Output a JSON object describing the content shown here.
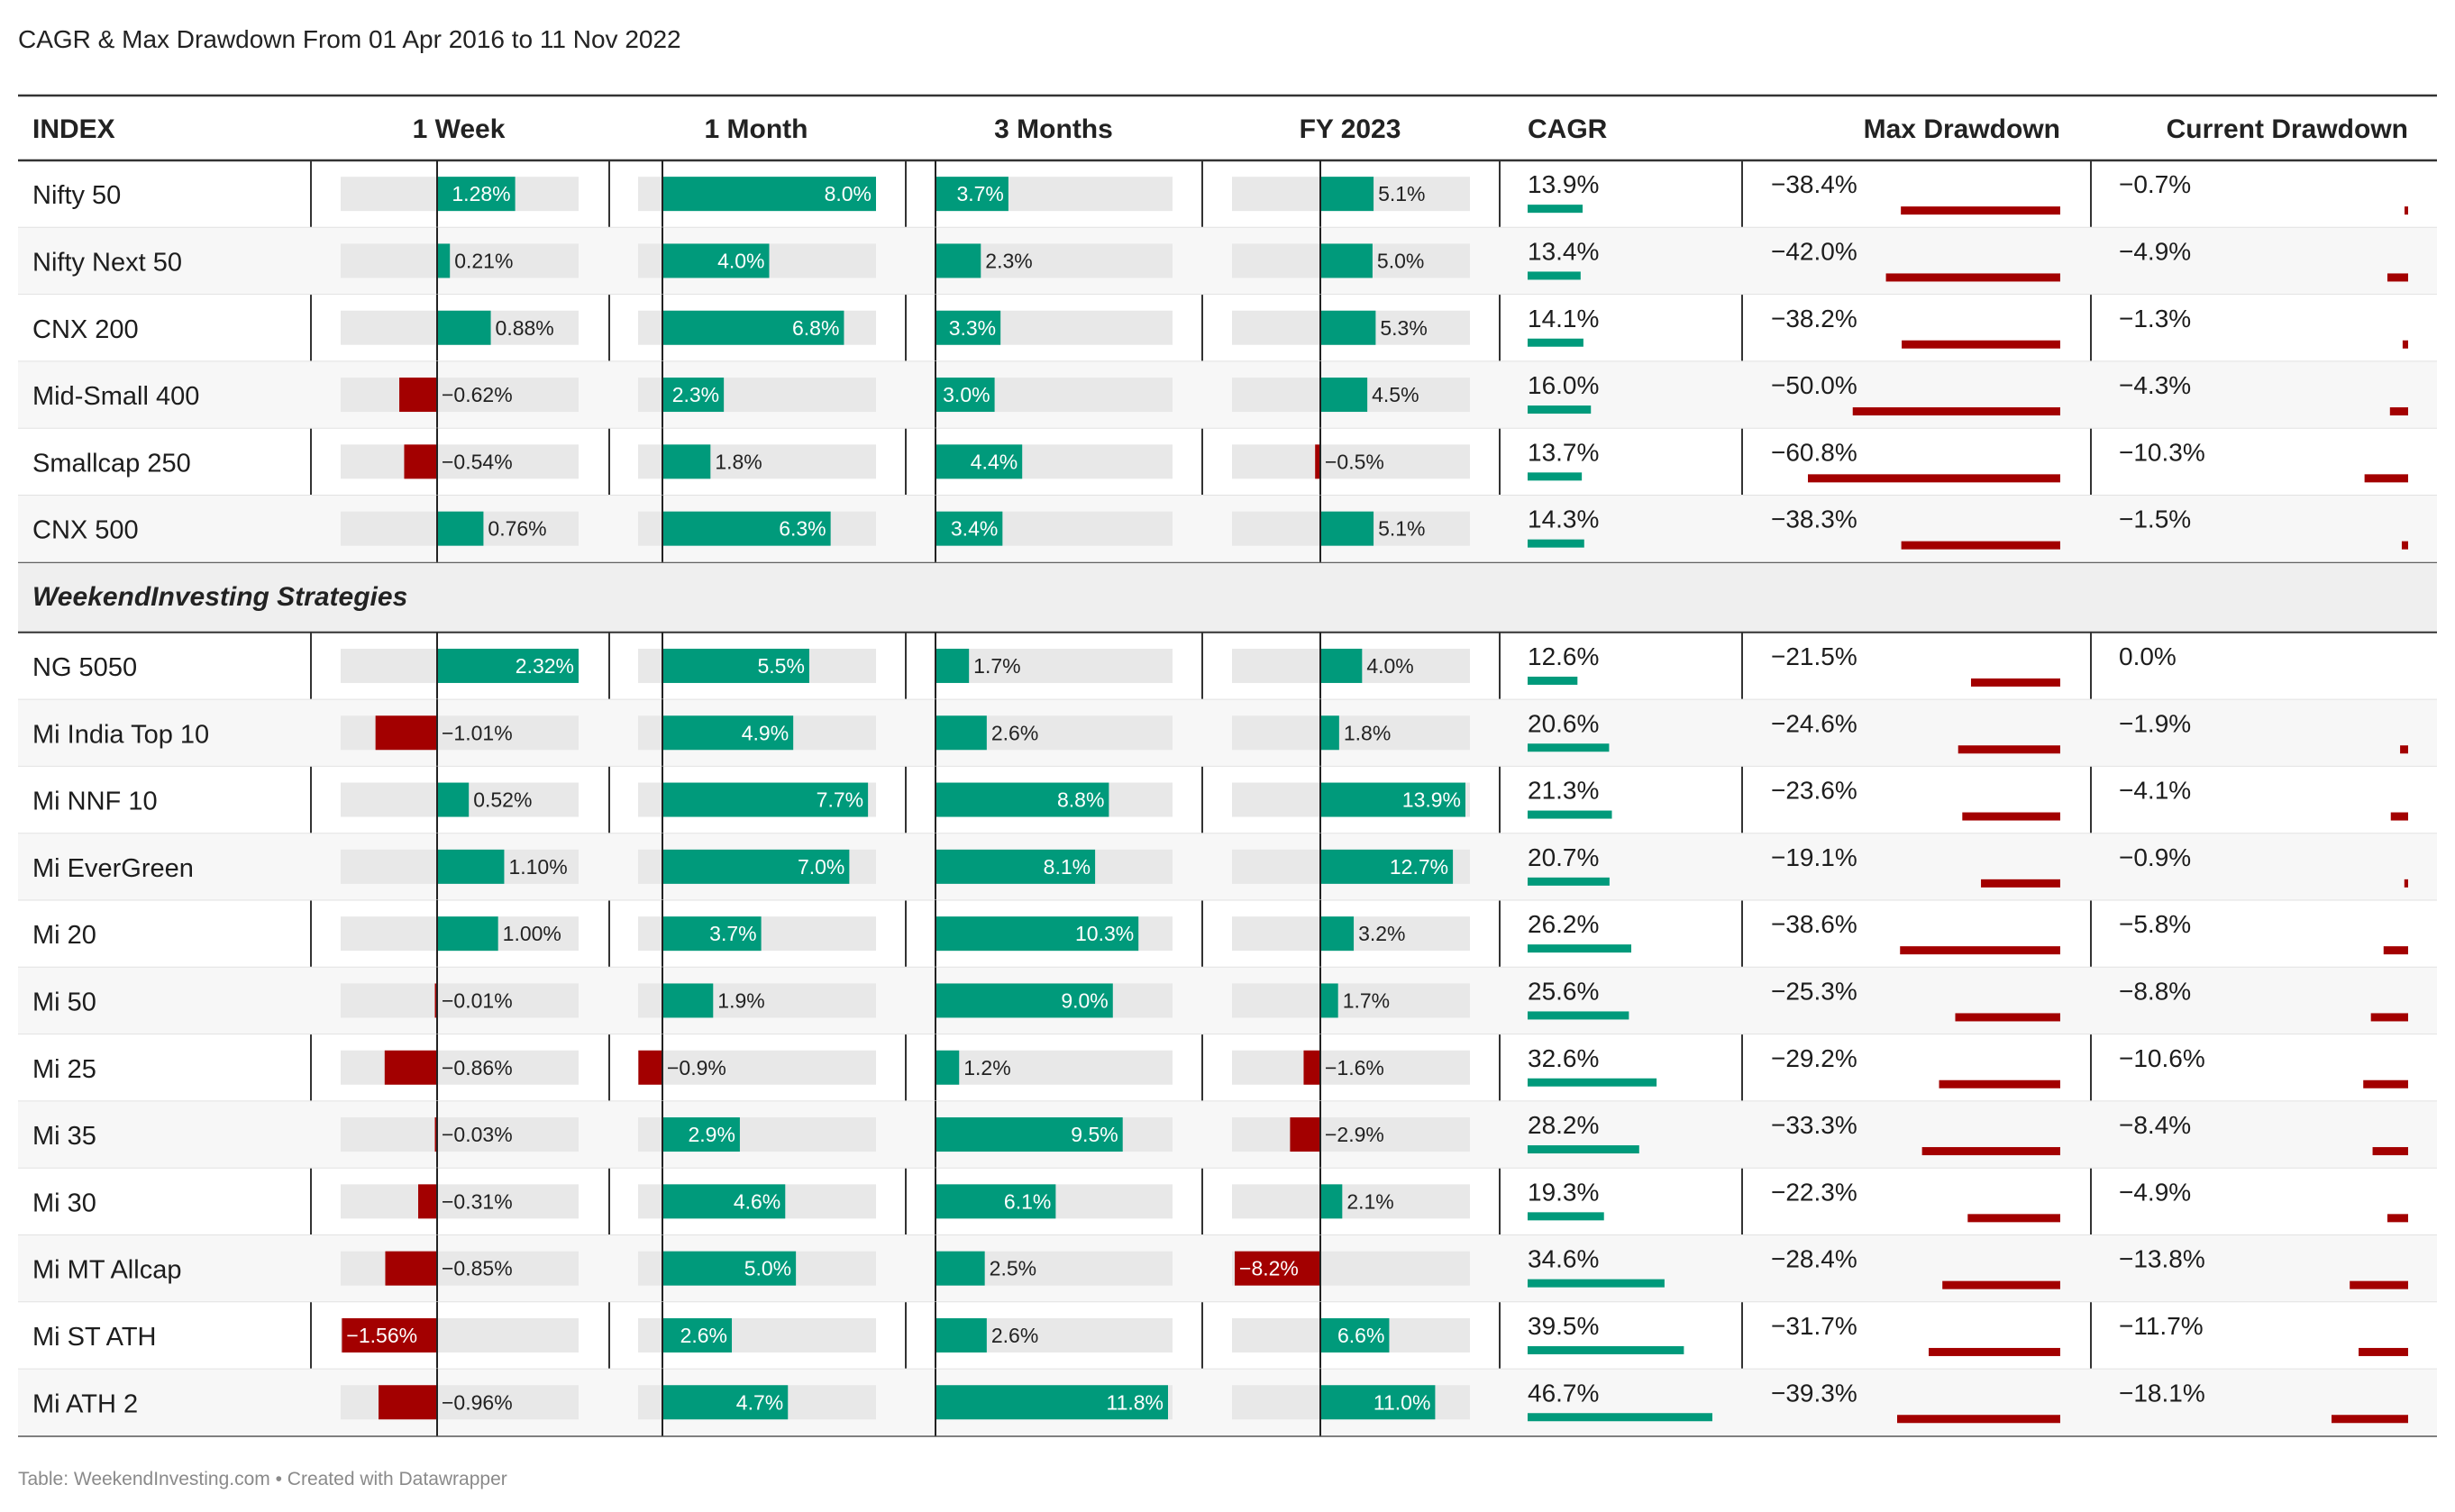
{
  "title": "CAGR & Max Drawdown From 01 Apr 2016 to 11 Nov 2022",
  "footer": "Table: WeekendInvesting.com • Created with Datawrapper",
  "colors": {
    "positive": "#009a7b",
    "negative": "#a30000",
    "track": "#e8e8e8",
    "group_bg": "#efefef",
    "zebra": "#f7f7f7"
  },
  "chart_data": {
    "type": "table",
    "columns": [
      "INDEX",
      "1 Week",
      "1 Month",
      "3 Months",
      "FY 2023",
      "CAGR",
      "Max Drawdown",
      "Current Drawdown"
    ],
    "groups": [
      {
        "label": "",
        "rows": [
          {
            "name": "Nifty 50",
            "week": 1.28,
            "month": 8.0,
            "three_months": 3.7,
            "fy2023": 5.1,
            "cagr": 13.9,
            "max_dd": -38.4,
            "cur_dd": -0.7
          },
          {
            "name": "Nifty Next 50",
            "week": 0.21,
            "month": 4.0,
            "three_months": 2.3,
            "fy2023": 5.0,
            "cagr": 13.4,
            "max_dd": -42.0,
            "cur_dd": -4.9
          },
          {
            "name": "CNX 200",
            "week": 0.88,
            "month": 6.8,
            "three_months": 3.3,
            "fy2023": 5.3,
            "cagr": 14.1,
            "max_dd": -38.2,
            "cur_dd": -1.3
          },
          {
            "name": "Mid-Small 400",
            "week": -0.62,
            "month": 2.3,
            "three_months": 3.0,
            "fy2023": 4.5,
            "cagr": 16.0,
            "max_dd": -50.0,
            "cur_dd": -4.3
          },
          {
            "name": "Smallcap 250",
            "week": -0.54,
            "month": 1.8,
            "three_months": 4.4,
            "fy2023": -0.5,
            "cagr": 13.7,
            "max_dd": -60.8,
            "cur_dd": -10.3
          },
          {
            "name": "CNX 500",
            "week": 0.76,
            "month": 6.3,
            "three_months": 3.4,
            "fy2023": 5.1,
            "cagr": 14.3,
            "max_dd": -38.3,
            "cur_dd": -1.5
          }
        ]
      },
      {
        "label": "WeekendInvesting Strategies",
        "rows": [
          {
            "name": "NG 5050",
            "week": 2.32,
            "month": 5.5,
            "three_months": 1.7,
            "fy2023": 4.0,
            "cagr": 12.6,
            "max_dd": -21.5,
            "cur_dd": 0.0
          },
          {
            "name": "Mi India Top 10",
            "week": -1.01,
            "month": 4.9,
            "three_months": 2.6,
            "fy2023": 1.8,
            "cagr": 20.6,
            "max_dd": -24.6,
            "cur_dd": -1.9
          },
          {
            "name": "Mi NNF 10",
            "week": 0.52,
            "month": 7.7,
            "three_months": 8.8,
            "fy2023": 13.9,
            "cagr": 21.3,
            "max_dd": -23.6,
            "cur_dd": -4.1
          },
          {
            "name": "Mi EverGreen",
            "week": 1.1,
            "month": 7.0,
            "three_months": 8.1,
            "fy2023": 12.7,
            "cagr": 20.7,
            "max_dd": -19.1,
            "cur_dd": -0.9
          },
          {
            "name": "Mi 20",
            "week": 1.0,
            "month": 3.7,
            "three_months": 10.3,
            "fy2023": 3.2,
            "cagr": 26.2,
            "max_dd": -38.6,
            "cur_dd": -5.8
          },
          {
            "name": "Mi 50",
            "week": -0.01,
            "month": 1.9,
            "three_months": 9.0,
            "fy2023": 1.7,
            "cagr": 25.6,
            "max_dd": -25.3,
            "cur_dd": -8.8
          },
          {
            "name": "Mi 25",
            "week": -0.86,
            "month": -0.9,
            "three_months": 1.2,
            "fy2023": -1.6,
            "cagr": 32.6,
            "max_dd": -29.2,
            "cur_dd": -10.6
          },
          {
            "name": "Mi 35",
            "week": -0.03,
            "month": 2.9,
            "three_months": 9.5,
            "fy2023": -2.9,
            "cagr": 28.2,
            "max_dd": -33.3,
            "cur_dd": -8.4
          },
          {
            "name": "Mi 30",
            "week": -0.31,
            "month": 4.6,
            "three_months": 6.1,
            "fy2023": 2.1,
            "cagr": 19.3,
            "max_dd": -22.3,
            "cur_dd": -4.9
          },
          {
            "name": "Mi MT Allcap",
            "week": -0.85,
            "month": 5.0,
            "three_months": 2.5,
            "fy2023": -8.2,
            "cagr": 34.6,
            "max_dd": -28.4,
            "cur_dd": -13.8
          },
          {
            "name": "Mi ST ATH",
            "week": -1.56,
            "month": 2.6,
            "three_months": 2.6,
            "fy2023": 6.6,
            "cagr": 39.5,
            "max_dd": -31.7,
            "cur_dd": -11.7
          },
          {
            "name": "Mi ATH 2",
            "week": -0.96,
            "month": 4.7,
            "three_months": 11.8,
            "fy2023": 11.0,
            "cagr": 46.7,
            "max_dd": -39.3,
            "cur_dd": -18.1
          }
        ]
      }
    ]
  }
}
